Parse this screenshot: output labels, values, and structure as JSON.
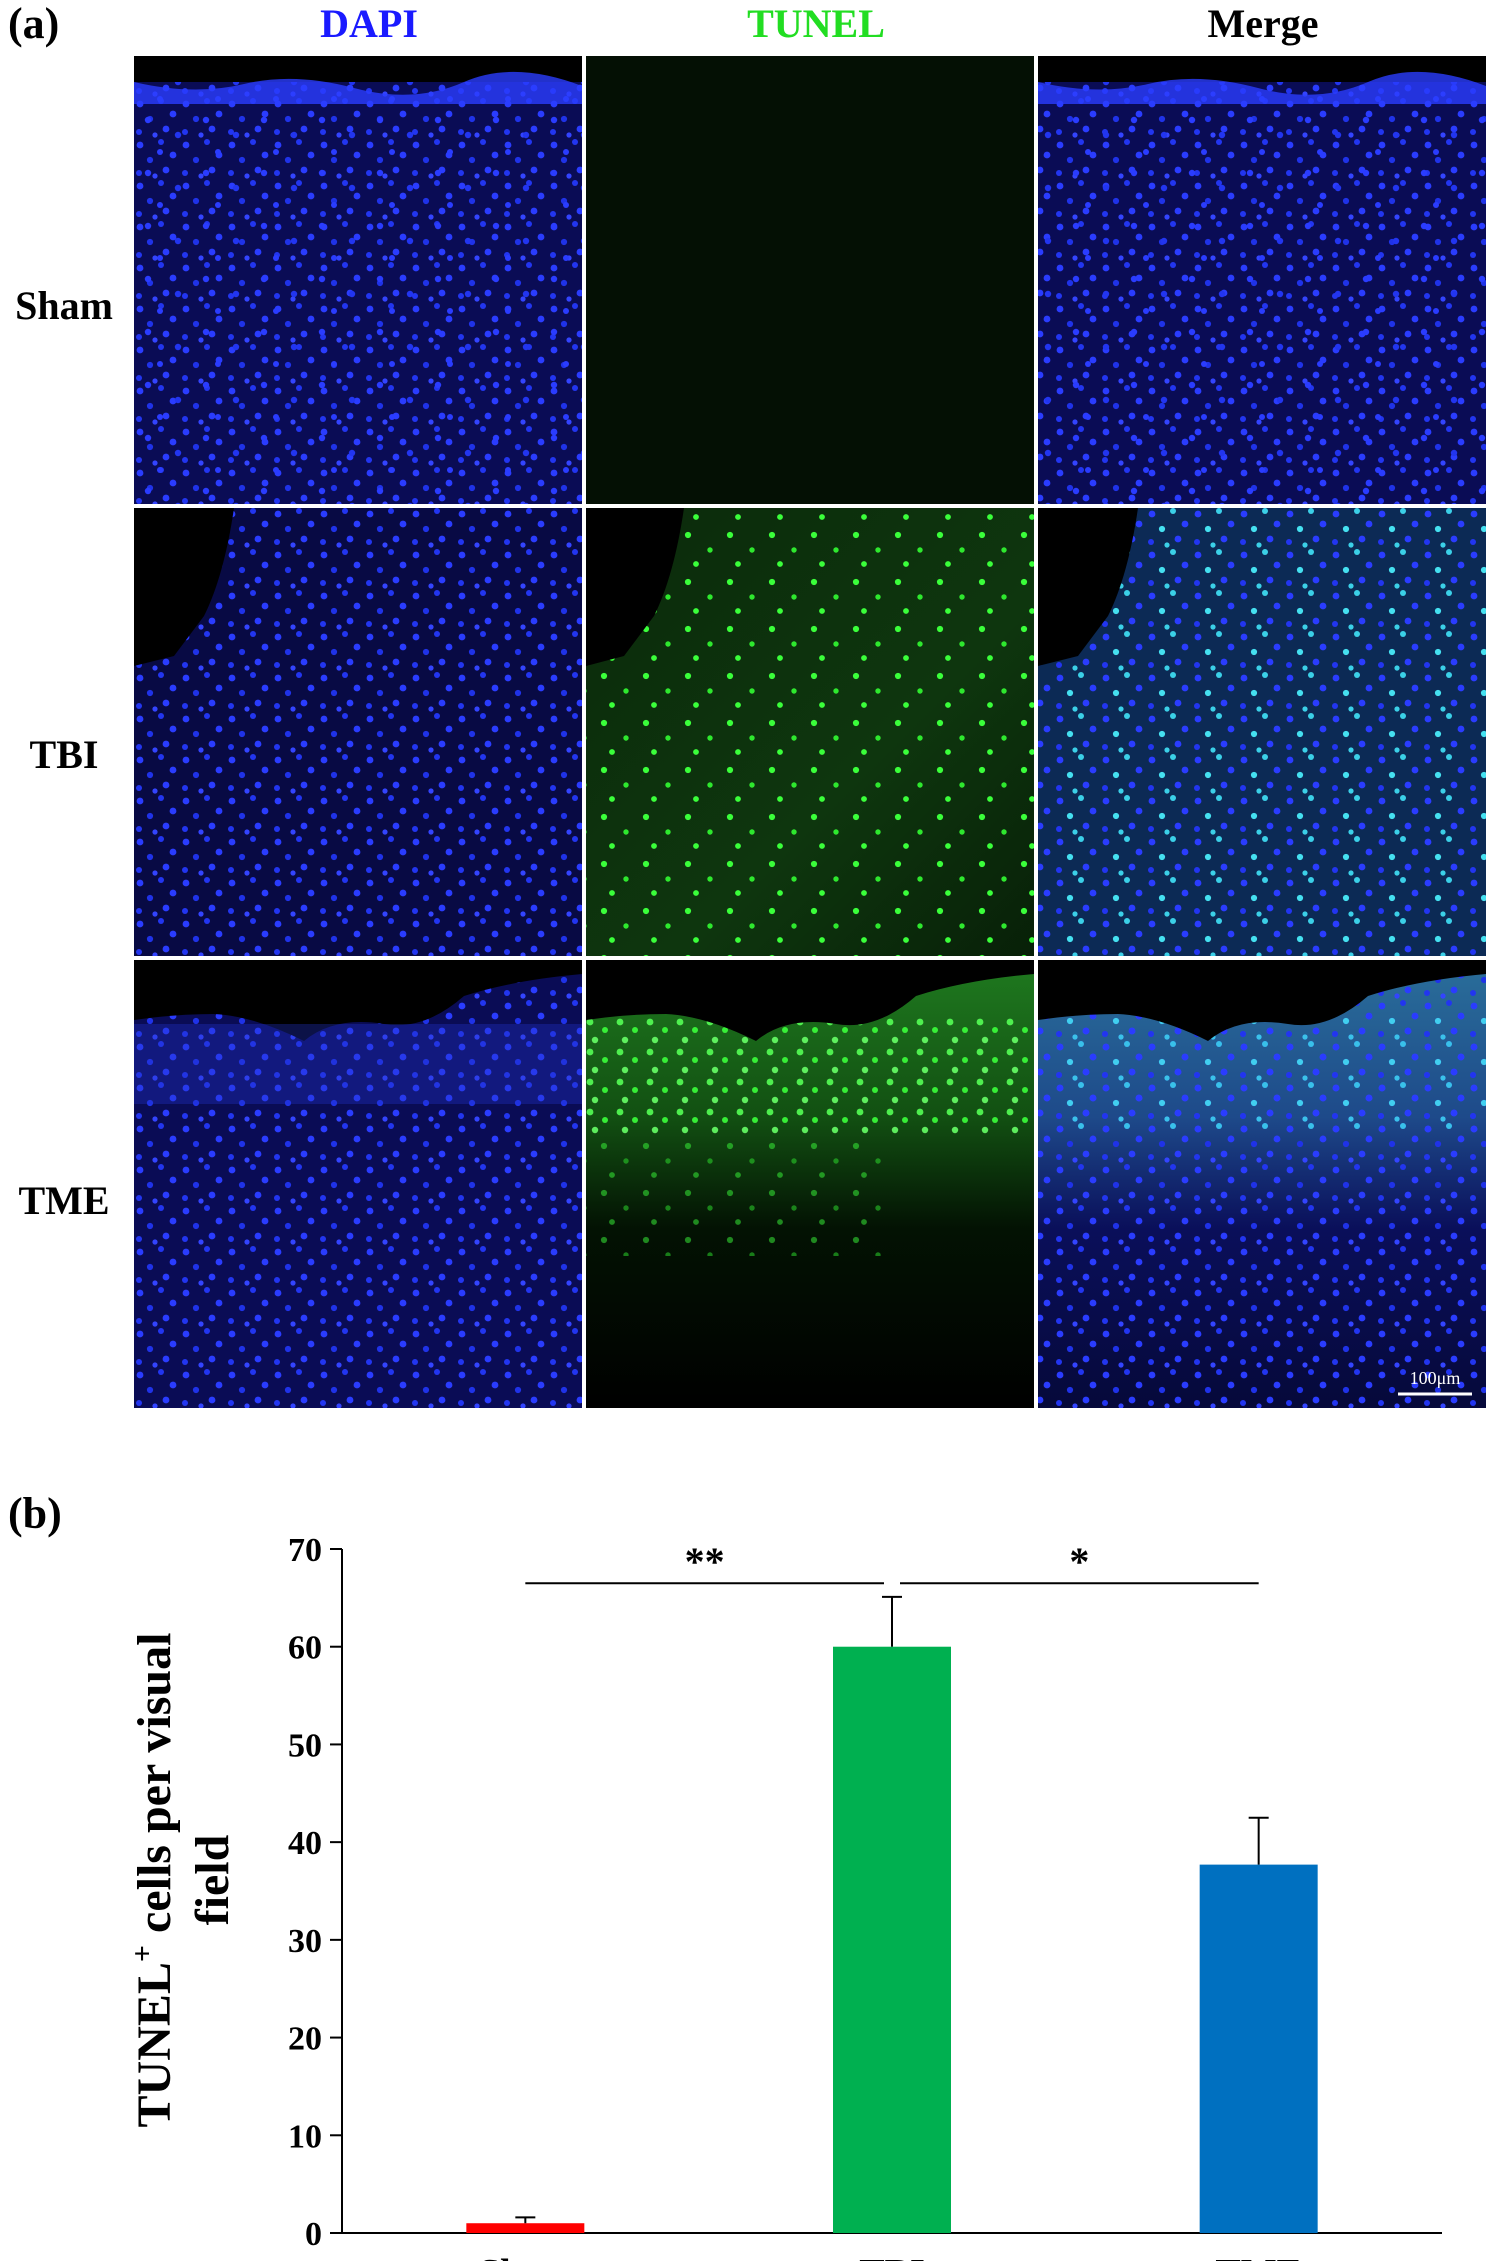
{
  "figure": {
    "panel_a_label": "(a)",
    "panel_b_label": "(b)",
    "columns": [
      {
        "label": "DAPI",
        "color": "#1a1aff"
      },
      {
        "label": "TUNEL",
        "color": "#22dd22"
      },
      {
        "label": "Merge",
        "color": "#000000"
      }
    ],
    "rows": [
      "Sham",
      "TBI",
      "TME"
    ],
    "scale_bar": "100μm"
  },
  "chart_data": {
    "type": "bar",
    "categories": [
      "Sham",
      "TBI",
      "TME"
    ],
    "values": [
      1.0,
      60.0,
      37.7
    ],
    "errors": [
      0.6,
      5.1,
      4.8
    ],
    "colors": [
      "#ff0000",
      "#00b050",
      "#0070c0"
    ],
    "ylabel_main": "TUNEL",
    "ylabel_sup": "+",
    "ylabel_rest": " cells per visual",
    "ylabel_line2": "field",
    "ylim": [
      0,
      70
    ],
    "yticks": [
      0,
      10,
      20,
      30,
      40,
      50,
      60,
      70
    ],
    "significance": [
      {
        "from": "Sham",
        "to": "TBI",
        "label": "**"
      },
      {
        "from": "TBI",
        "to": "TME",
        "label": "*"
      }
    ]
  }
}
